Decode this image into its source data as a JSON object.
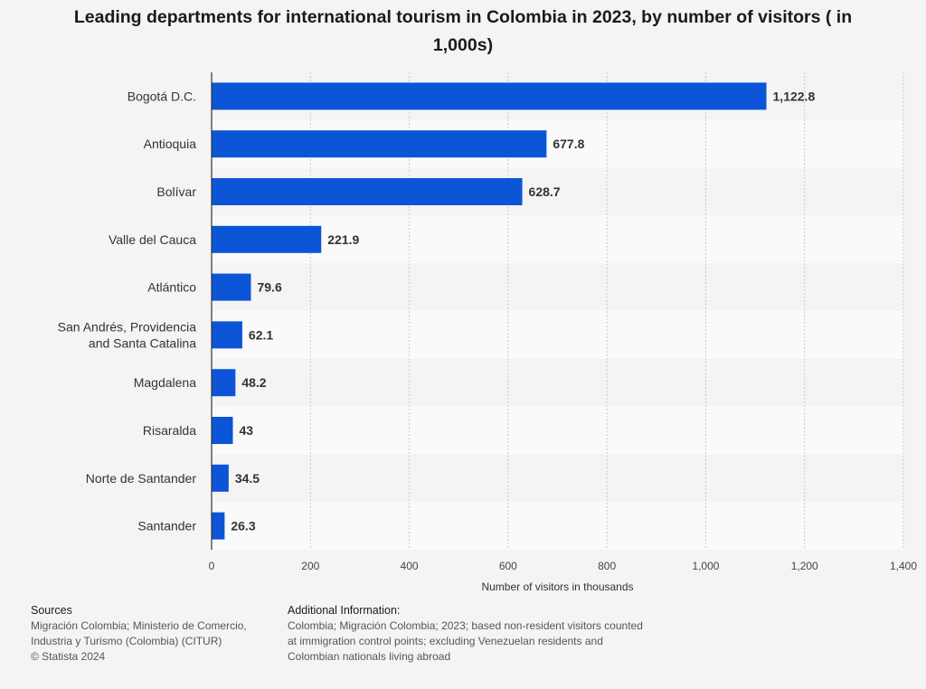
{
  "chart_data": {
    "type": "bar",
    "orientation": "horizontal",
    "title": "Leading departments for international tourism in Colombia in 2023, by number of visitors ( in 1,000s)",
    "xlabel": "Number of visitors in thousands",
    "ylabel": "",
    "xlim": [
      0,
      1400
    ],
    "xticks": [
      0,
      200,
      400,
      600,
      800,
      1000,
      1200,
      1400
    ],
    "xtick_labels": [
      "0",
      "200",
      "400",
      "600",
      "800",
      "1,000",
      "1,200",
      "1,400"
    ],
    "grid": true,
    "bar_color": "#0b55d6",
    "categories": [
      [
        "Bogotá D.C."
      ],
      [
        "Antioquia"
      ],
      [
        "Bolívar"
      ],
      [
        "Valle del Cauca"
      ],
      [
        "Atlántico"
      ],
      [
        "San Andrés, Providencia",
        "and Santa Catalina"
      ],
      [
        "Magdalena"
      ],
      [
        "Risaralda"
      ],
      [
        "Norte de Santander"
      ],
      [
        "Santander"
      ]
    ],
    "values": [
      1122.8,
      677.8,
      628.7,
      221.9,
      79.6,
      62.1,
      48.2,
      43,
      34.5,
      26.3
    ],
    "value_labels": [
      "1,122.8",
      "677.8",
      "628.7",
      "221.9",
      "79.6",
      "62.1",
      "48.2",
      "43",
      "34.5",
      "26.3"
    ]
  },
  "footer": {
    "sources_heading": "Sources",
    "sources_lines": [
      "Migración Colombia; Ministerio de Comercio,",
      "Industria y Turismo (Colombia) (CITUR)",
      "© Statista 2024"
    ],
    "additional_heading": "Additional Information:",
    "additional_lines": [
      "Colombia; Migración Colombia; 2023; based non-resident visitors counted",
      "at immigration control points; excluding Venezuelan residents and",
      "Colombian nationals living abroad"
    ]
  }
}
